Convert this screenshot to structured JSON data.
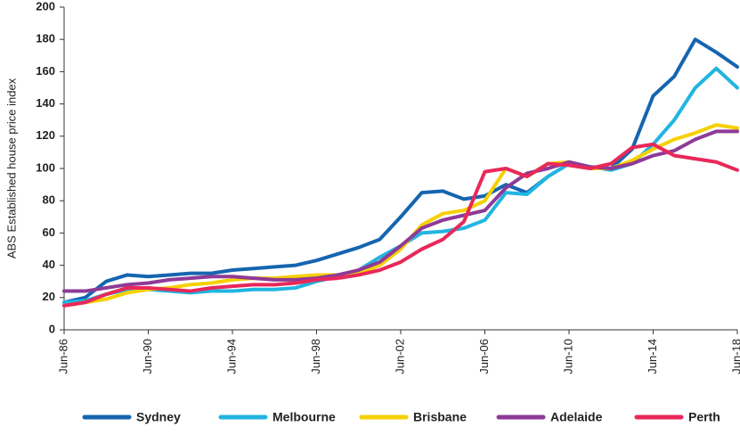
{
  "chart_data": {
    "type": "line",
    "y_label": "ABS Established house price index",
    "categories": [
      "Jun-86",
      null,
      null,
      null,
      "Jun-90",
      null,
      null,
      null,
      "Jun-94",
      null,
      null,
      null,
      "Jun-98",
      null,
      null,
      null,
      "Jun-02",
      null,
      null,
      null,
      "Jun-06",
      null,
      null,
      null,
      "Jun-10",
      null,
      null,
      null,
      "Jun-14",
      null,
      null,
      null,
      "Jun-18"
    ],
    "series": [
      {
        "name": "Sydney",
        "color": "#1565b0",
        "values": [
          17,
          20,
          30,
          34,
          33,
          34,
          35,
          35,
          37,
          38,
          39,
          40,
          43,
          47,
          51,
          56,
          70,
          85,
          86,
          81,
          83,
          90,
          85,
          95,
          103,
          101,
          100,
          112,
          145,
          157,
          180,
          172,
          163
        ]
      },
      {
        "name": "Melbourne",
        "color": "#21b5e0",
        "values": [
          17,
          18,
          22,
          25,
          25,
          24,
          23,
          24,
          24,
          25,
          25,
          26,
          30,
          33,
          37,
          45,
          52,
          60,
          61,
          63,
          68,
          85,
          84,
          95,
          103,
          101,
          99,
          103,
          115,
          130,
          150,
          162,
          150
        ]
      },
      {
        "name": "Brisbane",
        "color": "#f6d000",
        "values": [
          15,
          17,
          19,
          23,
          25,
          26,
          28,
          29,
          31,
          32,
          32,
          33,
          34,
          34,
          35,
          40,
          50,
          65,
          72,
          74,
          80,
          100,
          95,
          103,
          104,
          100,
          100,
          105,
          112,
          118,
          122,
          127,
          125
        ]
      },
      {
        "name": "Adelaide",
        "color": "#8e3a97",
        "values": [
          24,
          24,
          26,
          28,
          29,
          31,
          32,
          33,
          33,
          32,
          31,
          31,
          32,
          34,
          37,
          42,
          52,
          63,
          68,
          71,
          74,
          88,
          97,
          100,
          104,
          101,
          100,
          103,
          108,
          111,
          118,
          123,
          123
        ]
      },
      {
        "name": "Perth",
        "color": "#e8285a",
        "values": [
          15,
          17,
          22,
          26,
          26,
          25,
          24,
          26,
          27,
          28,
          28,
          29,
          31,
          32,
          34,
          37,
          42,
          50,
          56,
          67,
          98,
          100,
          95,
          103,
          102,
          100,
          103,
          113,
          115,
          108,
          106,
          104,
          99
        ]
      }
    ],
    "ylim": [
      0,
      200
    ],
    "yticks": [
      0,
      20,
      40,
      60,
      80,
      100,
      120,
      140,
      160,
      180,
      200
    ]
  }
}
